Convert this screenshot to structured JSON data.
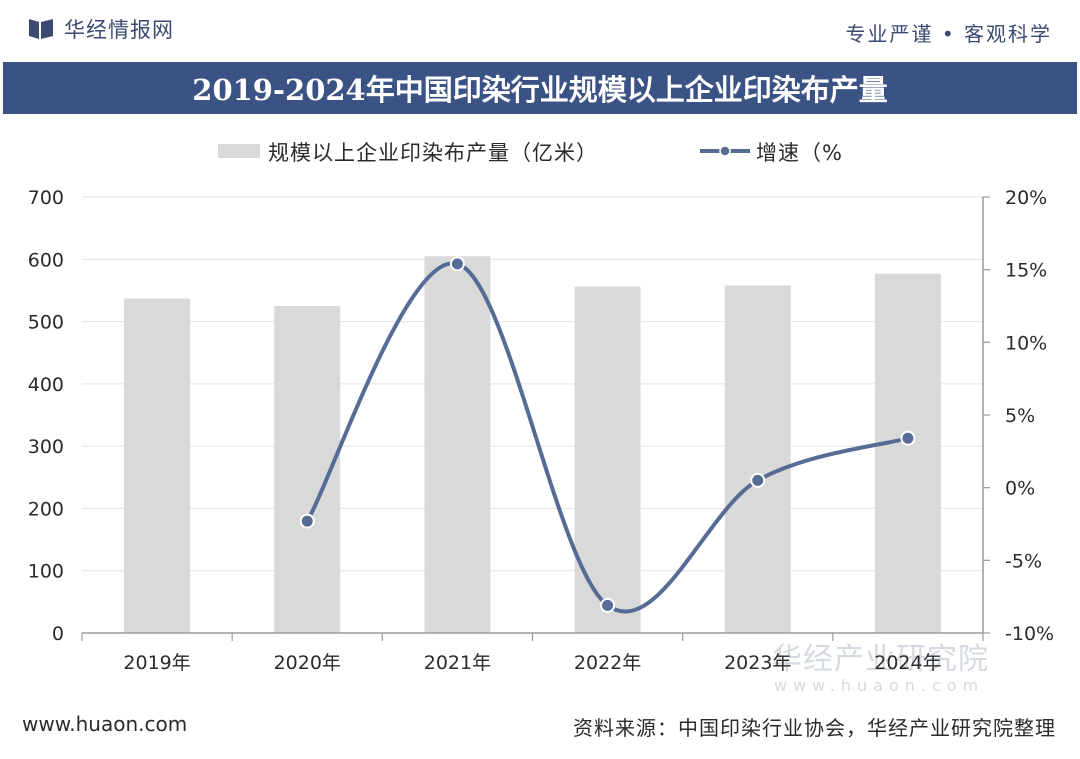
{
  "header": {
    "brand_name": "华经情报网",
    "slogan": "专业严谨 • 客观科学",
    "brand_icon": "book-icon"
  },
  "title": "2019-2024年中国印染行业规模以上企业印染布产量",
  "legend": {
    "bar_label": "规模以上企业印染布产量（亿米）",
    "line_label": "增速（%"
  },
  "colors": {
    "bar": "#d9d9d9",
    "line": "#566c95",
    "title_bg": "#3b5285",
    "brand": "#3c4a72"
  },
  "chart_data": {
    "type": "bar",
    "title": "2019-2024年中国印染行业规模以上企业印染布产量",
    "categories": [
      "2019年",
      "2020年",
      "2021年",
      "2022年",
      "2023年",
      "2024年"
    ],
    "series": [
      {
        "name": "规模以上企业印染布产量（亿米）",
        "type": "bar",
        "axis": "left",
        "values": [
          537,
          525,
          605,
          556,
          558,
          577
        ]
      },
      {
        "name": "增速（%",
        "type": "line",
        "axis": "right",
        "smooth": true,
        "values": [
          null,
          -2.3,
          15.4,
          -8.1,
          0.5,
          3.4
        ]
      }
    ],
    "y_left": {
      "range": [
        0,
        700
      ],
      "ticks": [
        0,
        100,
        200,
        300,
        400,
        500,
        600,
        700
      ],
      "tick_labels": [
        "0",
        "100",
        "200",
        "300",
        "400",
        "500",
        "600",
        "700"
      ]
    },
    "y_right": {
      "range": [
        -10,
        20
      ],
      "ticks": [
        -10,
        -5,
        0,
        5,
        10,
        15,
        20
      ],
      "tick_labels": [
        "-10%",
        "-5%",
        "0%",
        "5%",
        "10%",
        "15%",
        "20%"
      ]
    },
    "grid": "horizontal",
    "legend_position": "top"
  },
  "footer": {
    "website": "www.huaon.com",
    "source": "资料来源：中国印染行业协会，华经产业研究院整理"
  },
  "watermark": {
    "main": "华经产业研究院",
    "sub": "www.huaon.com"
  }
}
